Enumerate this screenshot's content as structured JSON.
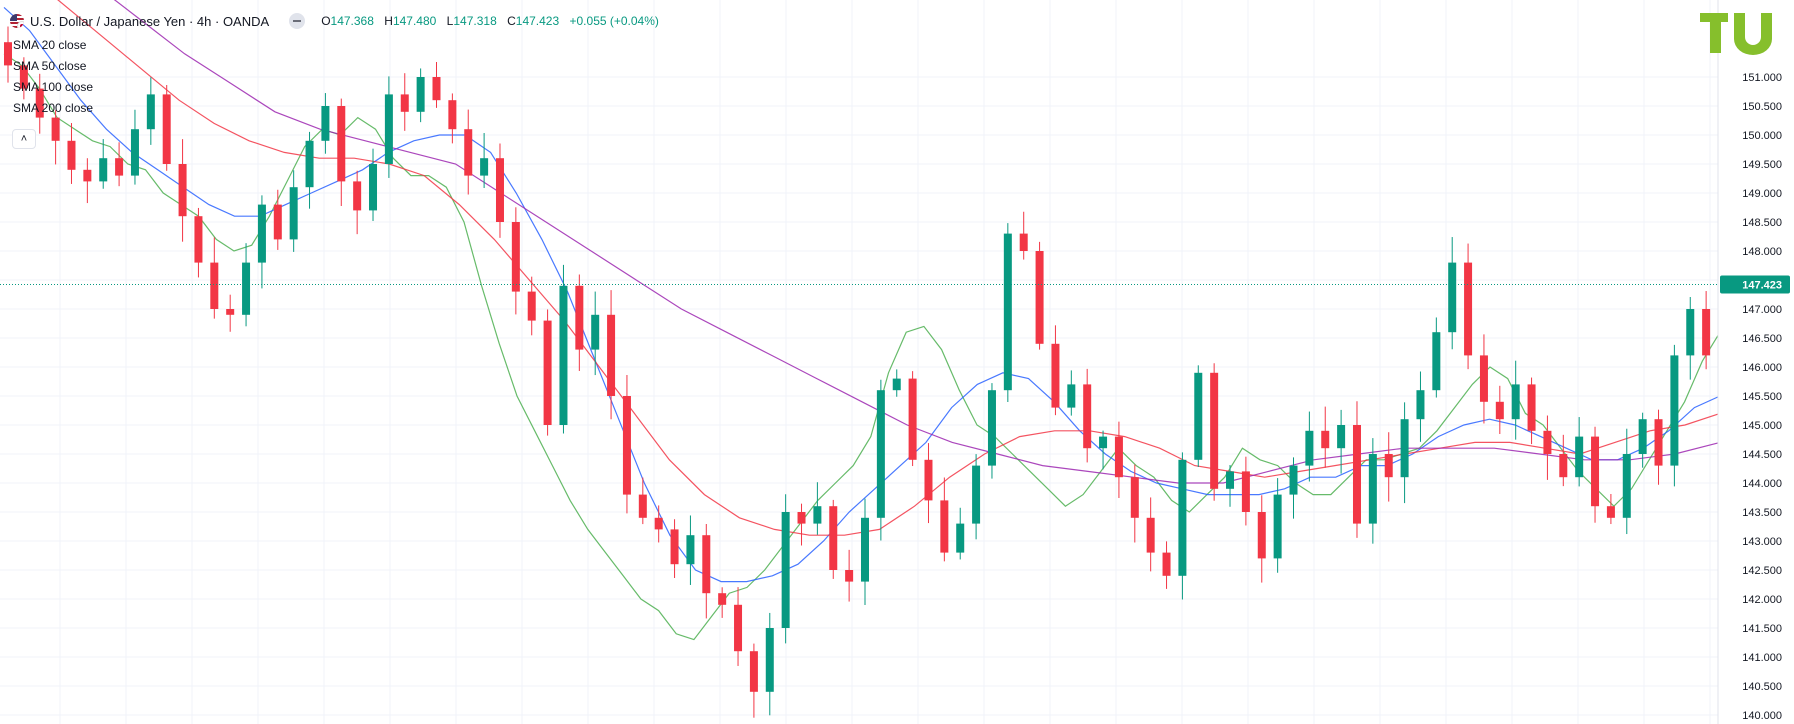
{
  "header": {
    "symbol": "U.S. Dollar / Japanese Yen · 4h · OANDA",
    "open_label": "O",
    "open": "147.368",
    "high_label": "H",
    "high": "147.480",
    "low_label": "L",
    "low": "147.318",
    "close_label": "C",
    "close": "147.423",
    "change": "+0.055 (+0.04%)"
  },
  "indicators": [
    {
      "label": "SMA 20 close",
      "color": "#4caf50"
    },
    {
      "label": "SMA 50 close",
      "color": "#2962ff"
    },
    {
      "label": "SMA 100 close",
      "color": "#f23645"
    },
    {
      "label": "SMA 200 close",
      "color": "#9c27b0"
    }
  ],
  "collapse_icon": "chevron-up-icon",
  "logo_icon": "tradingview-logo-icon",
  "colors": {
    "up": "#089981",
    "down": "#f23645",
    "grid": "#f0f3fa",
    "price_label": "#089981"
  },
  "chart_data": {
    "type": "candlestick",
    "instrument": "USD/JPY",
    "timeframe": "4h",
    "last_price": "147.423",
    "ylim": [
      140.0,
      152.0
    ],
    "y_ticks": [
      "151.000",
      "150.500",
      "150.000",
      "149.500",
      "149.000",
      "148.500",
      "148.000",
      "147.500",
      "147.000",
      "146.500",
      "146.000",
      "145.500",
      "145.000",
      "144.500",
      "144.000",
      "143.500",
      "143.000",
      "142.500",
      "142.000",
      "141.500",
      "141.000",
      "140.500",
      "140.000"
    ],
    "close_approx": [
      151.2,
      150.8,
      150.3,
      149.9,
      149.4,
      149.2,
      149.6,
      149.3,
      150.1,
      150.7,
      149.5,
      148.6,
      147.8,
      147.0,
      146.9,
      147.8,
      148.8,
      148.2,
      149.1,
      149.9,
      150.5,
      149.2,
      148.7,
      149.5,
      150.7,
      150.4,
      151.0,
      150.6,
      150.1,
      149.3,
      149.6,
      148.5,
      147.3,
      146.8,
      145.0,
      147.4,
      146.3,
      146.9,
      145.5,
      143.8,
      143.4,
      143.2,
      142.6,
      143.1,
      142.1,
      141.9,
      141.1,
      140.4,
      141.5,
      143.5,
      143.3,
      143.6,
      142.5,
      142.3,
      143.4,
      145.6,
      145.8,
      144.4,
      143.7,
      142.8,
      143.3,
      144.3,
      145.6,
      148.3,
      148.0,
      146.4,
      145.3,
      145.7,
      144.6,
      144.8,
      144.1,
      143.4,
      142.8,
      142.4,
      144.4,
      145.9,
      143.9,
      144.2,
      143.5,
      142.7,
      143.8,
      144.3,
      144.9,
      144.6,
      145.0,
      143.3,
      144.5,
      144.1,
      145.1,
      145.6,
      146.6,
      147.8,
      146.2,
      145.4,
      145.1,
      145.7,
      144.9,
      144.5,
      144.1,
      144.8,
      143.6,
      143.4,
      144.5,
      145.1,
      144.3,
      146.2,
      147.0,
      146.2,
      147.4
    ],
    "sma": [
      {
        "name": "SMA 20 close",
        "values": [
          151.4,
          151.2,
          150.8,
          150.3,
          150.1,
          149.9,
          149.8,
          149.5,
          149.4,
          149.0,
          148.8,
          148.6,
          148.2,
          148.0,
          148.1,
          148.6,
          149.2,
          149.8,
          150.1,
          150.0,
          150.3,
          150.1,
          149.6,
          149.3,
          149.3,
          149.1,
          148.5,
          147.4,
          146.4,
          145.5,
          144.9,
          144.3,
          143.7,
          143.2,
          142.8,
          142.4,
          142.0,
          141.8,
          141.4,
          141.3,
          141.7,
          142.1,
          142.2,
          142.5,
          142.9,
          143.3,
          143.7,
          144.0,
          144.3,
          144.8,
          145.9,
          146.6,
          146.7,
          146.3,
          145.6,
          145.0,
          144.8,
          144.5,
          144.2,
          143.9,
          143.6,
          143.8,
          144.2,
          144.6,
          144.3,
          144.1,
          143.7,
          143.5,
          143.8,
          144.1,
          144.6,
          144.4,
          144.3,
          144.0,
          143.8,
          143.8,
          144.1,
          144.4,
          144.4,
          144.5,
          144.6,
          144.9,
          145.3,
          145.7,
          146.0,
          145.8,
          145.2,
          145.0,
          144.6,
          144.2,
          143.9,
          143.6,
          143.9,
          144.4,
          144.9,
          145.4,
          146.1,
          146.6
        ]
      },
      {
        "name": "SMA 50 close",
        "values": [
          152.2,
          151.8,
          151.2,
          150.6,
          150.1,
          149.7,
          149.4,
          149.1,
          148.8,
          148.6,
          148.6,
          148.8,
          149.0,
          149.2,
          149.4,
          149.7,
          149.9,
          150.0,
          150.0,
          149.7,
          149.0,
          148.2,
          147.3,
          146.2,
          145.1,
          144.0,
          143.1,
          142.5,
          142.3,
          142.3,
          142.4,
          142.6,
          143.0,
          143.5,
          143.9,
          144.3,
          144.7,
          145.3,
          145.7,
          145.9,
          145.8,
          145.4,
          144.9,
          144.5,
          144.2,
          144.0,
          143.9,
          143.8,
          143.8,
          143.8,
          143.9,
          144.1,
          144.1,
          144.3,
          144.3,
          144.5,
          144.8,
          145.0,
          145.1,
          145.0,
          144.8,
          144.6,
          144.4,
          144.4,
          144.6,
          144.9,
          145.3,
          145.5
        ]
      },
      {
        "name": "SMA 100 close",
        "values": [
          153.0,
          152.6,
          152.1,
          151.6,
          151.1,
          150.6,
          150.2,
          149.9,
          149.7,
          149.6,
          149.6,
          149.5,
          149.3,
          148.8,
          148.2,
          147.5,
          146.8,
          146.0,
          145.2,
          144.4,
          143.8,
          143.4,
          143.2,
          143.1,
          143.1,
          143.2,
          143.6,
          144.1,
          144.5,
          144.8,
          144.9,
          144.9,
          144.8,
          144.6,
          144.3,
          144.2,
          144.1,
          144.2,
          144.3,
          144.4,
          144.5,
          144.6,
          144.7,
          144.7,
          144.6,
          144.5,
          144.7,
          144.9,
          145.0,
          145.2
        ]
      },
      {
        "name": "SMA 200 close",
        "values": [
          153.8,
          153.2,
          152.6,
          152.0,
          151.4,
          150.9,
          150.4,
          150.1,
          149.9,
          149.7,
          149.5,
          149.0,
          148.5,
          148.0,
          147.5,
          147.0,
          146.6,
          146.2,
          145.8,
          145.4,
          145.0,
          144.7,
          144.5,
          144.3,
          144.2,
          144.1,
          144.0,
          144.0,
          144.2,
          144.4,
          144.5,
          144.6,
          144.6,
          144.6,
          144.5,
          144.4,
          144.4,
          144.5,
          144.7
        ]
      }
    ]
  }
}
